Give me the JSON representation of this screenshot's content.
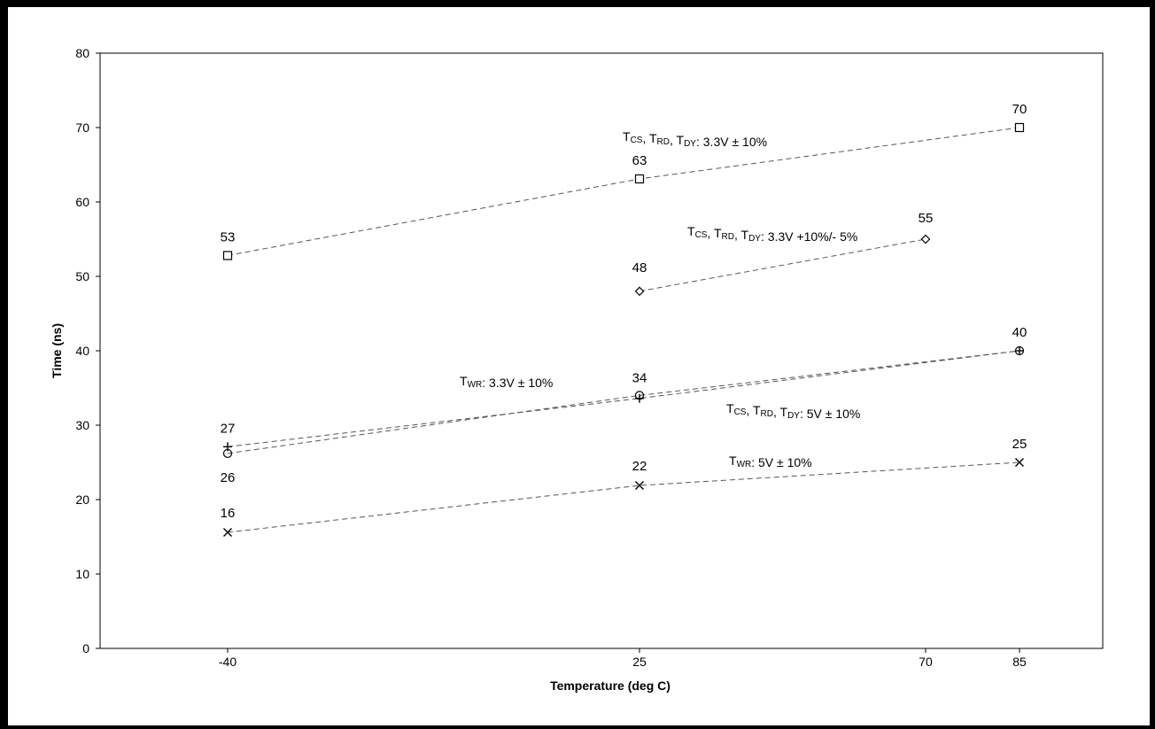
{
  "chart_data": {
    "type": "line",
    "xlabel": "Temperature (deg C)",
    "ylabel": "Time (ns)",
    "x_categories": [
      "-40",
      "25",
      "70",
      "85"
    ],
    "ylim": [
      0,
      80
    ],
    "yticks": [
      "0",
      "10",
      "20",
      "30",
      "40",
      "50",
      "60",
      "70",
      "80"
    ],
    "grid": false,
    "legend": "none",
    "series": [
      {
        "key": "tcs33_10",
        "name_parts": [
          [
            "T",
            "CS"
          ],
          [
            ", T",
            "RD"
          ],
          [
            ", T",
            "DY"
          ],
          [
            ": 3.3V ± 10%",
            ""
          ]
        ],
        "marker": "square",
        "x": [
          "-40",
          "25",
          "85"
        ],
        "values": [
          52.8,
          63.1,
          70
        ],
        "labels": [
          "53",
          "63",
          "70"
        ]
      },
      {
        "key": "tcs33_10_5",
        "name_parts": [
          [
            "T",
            "CS"
          ],
          [
            ", T",
            "RD"
          ],
          [
            ", T",
            "DY"
          ],
          [
            ": 3.3V +10%/- 5%",
            ""
          ]
        ],
        "marker": "diamond",
        "x": [
          "25",
          "70"
        ],
        "values": [
          48,
          55
        ],
        "labels": [
          "48",
          "55"
        ]
      },
      {
        "key": "twr33",
        "name_parts": [
          [
            "T",
            "WR"
          ],
          [
            ": 3.3V ± 10%",
            ""
          ]
        ],
        "marker": "plus",
        "x": [
          "-40",
          "25",
          "85"
        ],
        "values": [
          27.1,
          33.6,
          40
        ],
        "labels": [
          "27",
          "",
          "40"
        ]
      },
      {
        "key": "tcs5",
        "name_parts": [
          [
            "T",
            "CS"
          ],
          [
            ", T",
            "RD"
          ],
          [
            ", T",
            "DY"
          ],
          [
            ": 5V ± 10%",
            ""
          ]
        ],
        "marker": "circle",
        "x": [
          "-40",
          "25",
          "85"
        ],
        "values": [
          26.2,
          34,
          40
        ],
        "labels": [
          "26",
          "34",
          ""
        ]
      },
      {
        "key": "twr5",
        "name_parts": [
          [
            "T",
            "WR"
          ],
          [
            ": 5V ± 10%",
            ""
          ]
        ],
        "marker": "cross",
        "x": [
          "-40",
          "25",
          "85"
        ],
        "values": [
          15.6,
          21.9,
          25
        ],
        "labels": [
          "16",
          "22",
          "25"
        ]
      }
    ]
  }
}
